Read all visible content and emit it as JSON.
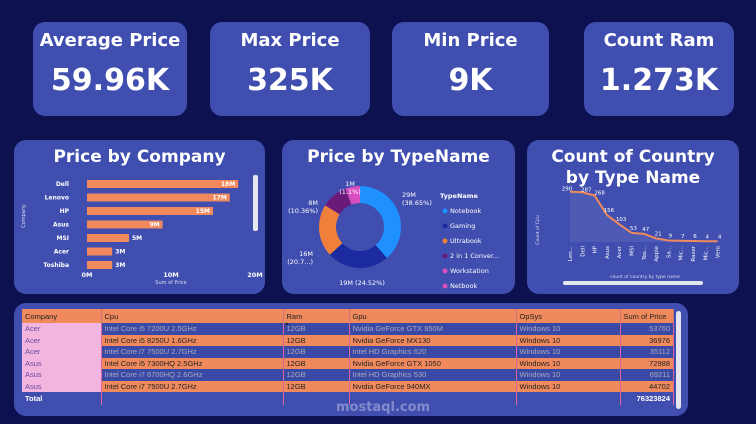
{
  "kpis": [
    {
      "title": "Average Price",
      "value": "59.96K"
    },
    {
      "title": "Max Price",
      "value": "325K"
    },
    {
      "title": "Min Price",
      "value": "9K"
    },
    {
      "title": "Count Ram",
      "value": "1.273K"
    }
  ],
  "company_chart": {
    "title": "Price by Company",
    "ylabel": "Company",
    "xlabel": "Sum of Price",
    "ticks": [
      "0M",
      "10M",
      "20M"
    ],
    "categories": [
      "Dell",
      "Lenovo",
      "HP",
      "Asus",
      "MSI",
      "Acer",
      "Toshiba"
    ],
    "values": [
      18,
      17,
      15,
      9,
      5,
      3,
      3
    ],
    "labels": [
      "18M",
      "17M",
      "15M",
      "9M",
      "5M",
      "3M",
      "3M"
    ],
    "xlim": [
      0,
      20
    ],
    "bar_color": "#f08a5d"
  },
  "type_chart": {
    "title": "Price by TypeName",
    "legend_title": "TypeName",
    "labels": [
      "29M\n(38.65%)",
      "19M (24.52%)",
      "16M\n(20.7...)",
      "8M\n(10.36%)",
      "1M\n(1.1%)"
    ],
    "legend": [
      {
        "name": "Notebook",
        "color": "#1e90ff"
      },
      {
        "name": "Gaming",
        "color": "#1b2a9e"
      },
      {
        "name": "Ultrabook",
        "color": "#f07f3c"
      },
      {
        "name": "2 in 1 Conver...",
        "color": "#6a1b7a"
      },
      {
        "name": "Workstation",
        "color": "#d94fbf"
      },
      {
        "name": "Netbook",
        "color": "#d94fbf"
      }
    ]
  },
  "country_chart": {
    "title": "Count of Country by Type Name",
    "ylabel": "Count of Cpu",
    "xlabel": "count of country by type name",
    "categories": [
      "Len...",
      "Dell",
      "HP",
      "Asus",
      "Acer",
      "MSI",
      "Tos...",
      "Apple",
      "Sa...",
      "Mic...",
      "Razer",
      "Mic...",
      "Vero"
    ],
    "values": [
      290,
      287,
      268,
      156,
      103,
      53,
      47,
      21,
      9,
      7,
      6,
      4,
      4
    ],
    "line_color": "#f08a5d"
  },
  "table": {
    "columns": [
      "Company",
      "Cpu",
      "Ram",
      "Gpu",
      "OpSys",
      "Sum of Price"
    ],
    "rows": [
      [
        "Acer",
        "Intel Core i5 7200U 2.5GHz",
        "12GB",
        "Nvidia GeForce GTX 950M",
        "Windows 10",
        "53760"
      ],
      [
        "Acer",
        "Intel Core i5 8250U 1.6GHz",
        "12GB",
        "Nvidia GeForce MX130",
        "Windows 10",
        "36976"
      ],
      [
        "Acer",
        "Intel Core i7 7500U 2.7GHz",
        "12GB",
        "Intel HD Graphics 620",
        "Windows 10",
        "35112"
      ],
      [
        "Asus",
        "Intel Core i5 7300HQ 2.5GHz",
        "12GB",
        "Nvidia GeForce GTX 1050",
        "Windows 10",
        "72988"
      ],
      [
        "Asus",
        "Intel Core i7 6700HQ 2.6GHz",
        "12GB",
        "Intel HD Graphics 530",
        "Windows 10",
        "69211"
      ],
      [
        "Asus",
        "Intel Core i7 7500U 2.7GHz",
        "12GB",
        "Nvidia GeForce 940MX",
        "Windows 10",
        "44702"
      ]
    ],
    "total_label": "Total",
    "total_value": "76323824"
  },
  "watermark": "mostaql.com"
}
